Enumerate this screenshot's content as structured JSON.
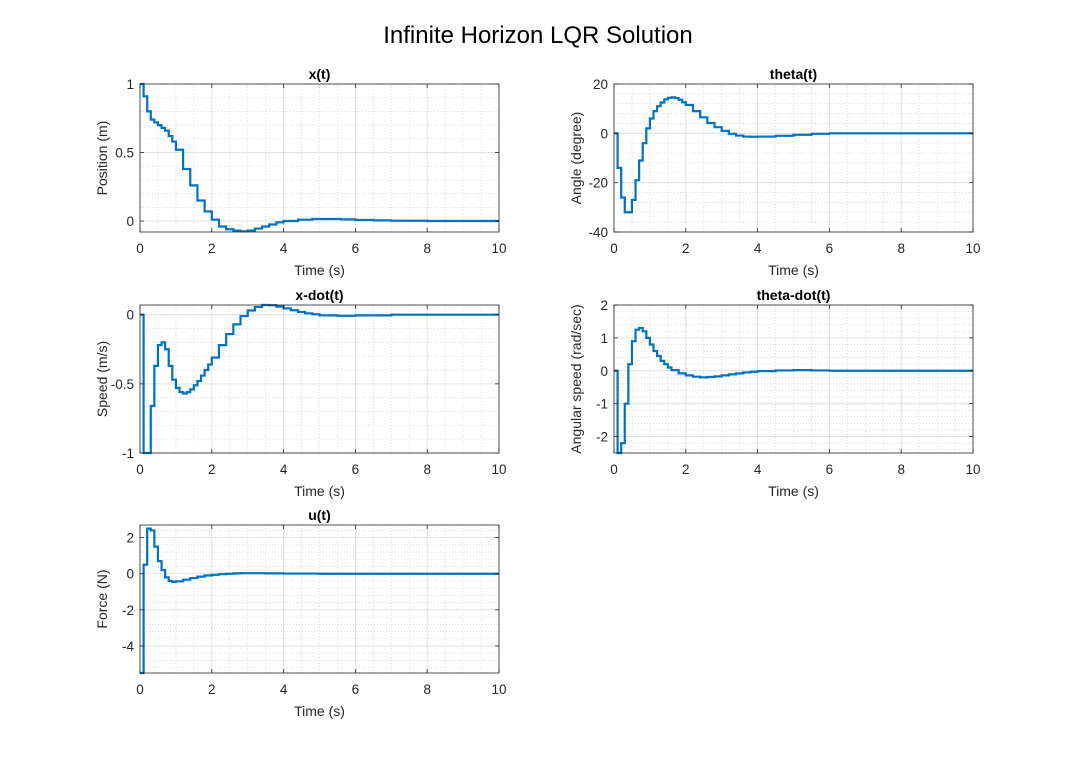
{
  "figure": {
    "title": "Infinite Horizon LQR Solution",
    "line_color": "#0072BD",
    "axes_color": "#262626",
    "grid": true,
    "minor_grid": true
  },
  "chart_data": [
    {
      "type": "line",
      "step": true,
      "title": "x(t)",
      "xlabel": "Time (s)",
      "ylabel": "Position (m)",
      "xlim": [
        0,
        10
      ],
      "ylim": [
        -0.08,
        1
      ],
      "xticks": [
        0,
        2,
        4,
        6,
        8,
        10
      ],
      "yticks": [
        0,
        0.5,
        1
      ],
      "ytick_labels": [
        "0",
        "0.5",
        "1"
      ],
      "series": [
        {
          "x": [
            0,
            0.1,
            0.2,
            0.3,
            0.4,
            0.5,
            0.6,
            0.7,
            0.8,
            0.9,
            1.0,
            1.2,
            1.4,
            1.6,
            1.8,
            2.0,
            2.2,
            2.4,
            2.6,
            2.8,
            3.0,
            3.2,
            3.4,
            3.6,
            3.8,
            4.0,
            4.4,
            4.8,
            5.2,
            5.6,
            6.0,
            6.5,
            7.0,
            8.0,
            9.0,
            10.0
          ],
          "y": [
            1.0,
            0.91,
            0.8,
            0.74,
            0.72,
            0.7,
            0.68,
            0.66,
            0.62,
            0.58,
            0.52,
            0.38,
            0.26,
            0.15,
            0.07,
            0.01,
            -0.04,
            -0.06,
            -0.07,
            -0.075,
            -0.07,
            -0.055,
            -0.04,
            -0.025,
            -0.01,
            0.0,
            0.01,
            0.015,
            0.015,
            0.012,
            0.008,
            0.005,
            0.002,
            0.0,
            0.0,
            0.0
          ]
        }
      ]
    },
    {
      "type": "line",
      "step": true,
      "title": "theta(t)",
      "xlabel": "Time (s)",
      "ylabel": "Angle (degree)",
      "xlim": [
        0,
        10
      ],
      "ylim": [
        -40,
        20
      ],
      "xticks": [
        0,
        2,
        4,
        6,
        8,
        10
      ],
      "yticks": [
        -40,
        -20,
        0,
        20
      ],
      "ytick_labels": [
        "-40",
        "-20",
        "0",
        "20"
      ],
      "series": [
        {
          "x": [
            0,
            0.1,
            0.2,
            0.3,
            0.4,
            0.5,
            0.6,
            0.7,
            0.8,
            0.9,
            1.0,
            1.1,
            1.2,
            1.3,
            1.4,
            1.5,
            1.6,
            1.7,
            1.8,
            1.9,
            2.0,
            2.2,
            2.4,
            2.6,
            2.8,
            3.0,
            3.2,
            3.4,
            3.6,
            3.8,
            4.0,
            4.5,
            5.0,
            5.5,
            6.0,
            7.0,
            8.0,
            9.0,
            10.0
          ],
          "y": [
            0,
            -14,
            -26,
            -32,
            -32,
            -27,
            -19,
            -11,
            -4,
            2,
            6,
            9,
            11,
            12.5,
            13.8,
            14.4,
            14.6,
            14.3,
            13.6,
            12.6,
            11.5,
            9,
            6.5,
            4.2,
            2.5,
            1,
            -0.2,
            -0.9,
            -1.3,
            -1.4,
            -1.3,
            -1.0,
            -0.6,
            -0.2,
            0,
            0,
            0,
            0,
            0
          ]
        }
      ]
    },
    {
      "type": "line",
      "step": true,
      "title": "x-dot(t)",
      "xlabel": "Time (s)",
      "ylabel": "Speed (m/s)",
      "xlim": [
        0,
        10
      ],
      "ylim": [
        -1,
        0.07
      ],
      "xticks": [
        0,
        2,
        4,
        6,
        8,
        10
      ],
      "yticks": [
        -1,
        -0.5,
        0
      ],
      "ytick_labels": [
        "-1",
        "-0.5",
        "0"
      ],
      "series": [
        {
          "x": [
            0,
            0.1,
            0.3,
            0.4,
            0.5,
            0.6,
            0.7,
            0.8,
            0.9,
            1.0,
            1.1,
            1.2,
            1.3,
            1.4,
            1.5,
            1.6,
            1.7,
            1.8,
            1.9,
            2.0,
            2.2,
            2.4,
            2.6,
            2.8,
            3.0,
            3.2,
            3.4,
            3.6,
            3.8,
            4.0,
            4.2,
            4.4,
            4.6,
            4.8,
            5.0,
            5.5,
            6.0,
            7.0,
            8.0,
            9.0,
            10.0
          ],
          "y": [
            0,
            -1.0,
            -0.66,
            -0.37,
            -0.22,
            -0.2,
            -0.25,
            -0.37,
            -0.47,
            -0.53,
            -0.56,
            -0.57,
            -0.56,
            -0.54,
            -0.51,
            -0.48,
            -0.44,
            -0.4,
            -0.36,
            -0.31,
            -0.22,
            -0.14,
            -0.07,
            -0.01,
            0.03,
            0.055,
            0.07,
            0.068,
            0.058,
            0.045,
            0.032,
            0.02,
            0.01,
            0.003,
            -0.005,
            -0.008,
            -0.005,
            0,
            0,
            0,
            0
          ]
        }
      ]
    },
    {
      "type": "line",
      "step": true,
      "title": "theta-dot(t)",
      "xlabel": "Time (s)",
      "ylabel": "Angular speed (rad/sec)",
      "xlim": [
        0,
        10
      ],
      "ylim": [
        -2.5,
        2
      ],
      "xticks": [
        0,
        2,
        4,
        6,
        8,
        10
      ],
      "yticks": [
        -2,
        -1,
        0,
        1,
        2
      ],
      "ytick_labels": [
        "-2",
        "-1",
        "0",
        "1",
        "2"
      ],
      "series": [
        {
          "x": [
            0,
            0.1,
            0.2,
            0.3,
            0.4,
            0.5,
            0.6,
            0.7,
            0.8,
            0.9,
            1.0,
            1.1,
            1.2,
            1.3,
            1.4,
            1.5,
            1.6,
            1.8,
            2.0,
            2.2,
            2.4,
            2.6,
            2.8,
            3.0,
            3.2,
            3.4,
            3.6,
            3.8,
            4.0,
            4.5,
            5.0,
            5.5,
            6.0,
            7.0,
            8.0,
            9.0,
            10.0
          ],
          "y": [
            0,
            -2.5,
            -2.2,
            -1.0,
            0.2,
            0.9,
            1.25,
            1.3,
            1.2,
            1.0,
            0.8,
            0.6,
            0.45,
            0.3,
            0.2,
            0.1,
            0.02,
            -0.08,
            -0.14,
            -0.18,
            -0.2,
            -0.19,
            -0.17,
            -0.14,
            -0.11,
            -0.08,
            -0.05,
            -0.03,
            -0.01,
            0.01,
            0.02,
            0.01,
            0,
            0,
            0,
            0,
            0
          ]
        }
      ]
    },
    {
      "type": "line",
      "step": true,
      "title": "u(t)",
      "xlabel": "Time (s)",
      "ylabel": "Force (N)",
      "xlim": [
        0,
        10
      ],
      "ylim": [
        -5.5,
        2.7
      ],
      "xticks": [
        0,
        2,
        4,
        6,
        8,
        10
      ],
      "yticks": [
        -4,
        -2,
        0,
        2
      ],
      "ytick_labels": [
        "-4",
        "-2",
        "0",
        "2"
      ],
      "series": [
        {
          "x": [
            0,
            0.1,
            0.2,
            0.3,
            0.4,
            0.5,
            0.6,
            0.7,
            0.8,
            0.9,
            1.0,
            1.2,
            1.4,
            1.6,
            1.8,
            2.0,
            2.2,
            2.4,
            2.6,
            2.8,
            3.0,
            3.5,
            4.0,
            5.0,
            6.0,
            7.0,
            8.0,
            9.0,
            10.0
          ],
          "y": [
            -5.5,
            0.5,
            2.5,
            2.4,
            1.5,
            0.7,
            0.2,
            -0.2,
            -0.4,
            -0.45,
            -0.42,
            -0.33,
            -0.24,
            -0.16,
            -0.1,
            -0.06,
            -0.02,
            0.0,
            0.02,
            0.03,
            0.03,
            0.02,
            0.01,
            0,
            0,
            0,
            0,
            0,
            0
          ]
        }
      ]
    }
  ]
}
